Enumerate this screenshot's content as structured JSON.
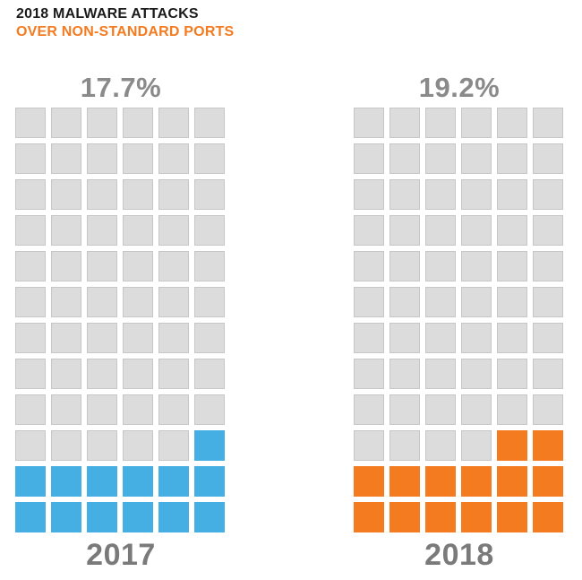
{
  "header": {
    "line1": "2018 MALWARE ATTACKS",
    "line2": "OVER NON-STANDARD PORTS"
  },
  "chart_data": {
    "type": "waffle",
    "grid": {
      "rows": 12,
      "cols": 6,
      "fill_order": "bottom-up, right-to-left"
    },
    "empty_color": "#dcdcdc",
    "panels": [
      {
        "year": "2017",
        "value_label": "17.7%",
        "value": 17.7,
        "filled_cells": 13,
        "color": "#45aee3"
      },
      {
        "year": "2018",
        "value_label": "19.2%",
        "value": 19.2,
        "filled_cells": 14,
        "color": "#f47b20"
      }
    ]
  }
}
